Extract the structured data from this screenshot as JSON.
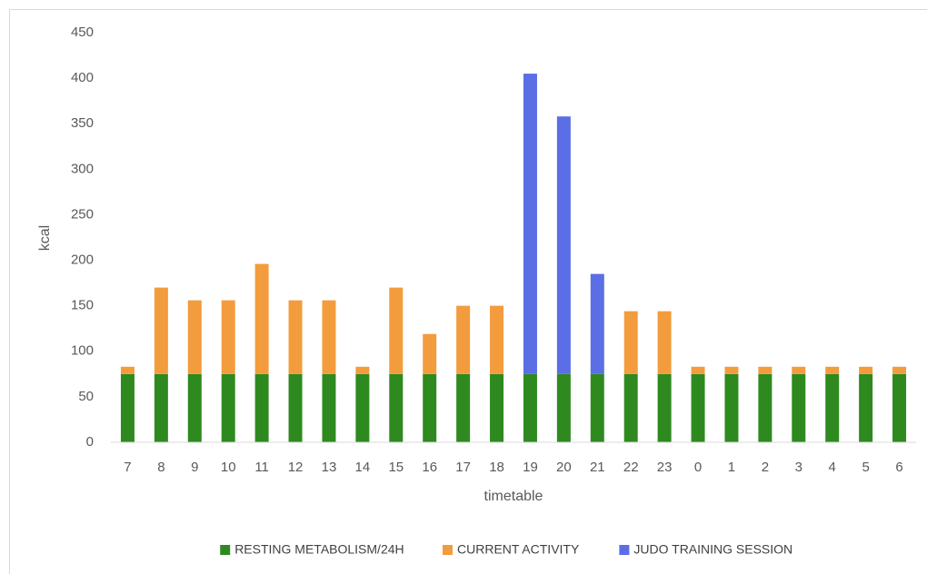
{
  "chart_data": {
    "type": "stacked_bar",
    "x_label": "timetable",
    "y_label": "kcal",
    "categories": [
      "7",
      "8",
      "9",
      "10",
      "11",
      "12",
      "13",
      "14",
      "15",
      "16",
      "17",
      "18",
      "19",
      "20",
      "21",
      "22",
      "23",
      "0",
      "1",
      "2",
      "3",
      "4",
      "5",
      "6"
    ],
    "series": [
      {
        "name": "RESTING METABOLISM/24H",
        "color": "#2e8a1f",
        "values": [
          75,
          75,
          75,
          75,
          75,
          75,
          75,
          75,
          75,
          75,
          75,
          75,
          75,
          75,
          75,
          75,
          75,
          75,
          75,
          75,
          75,
          75,
          75,
          75
        ]
      },
      {
        "name": "CURRENT ACTIVITY",
        "color": "#f39c3d",
        "values": [
          8,
          95,
          81,
          81,
          121,
          81,
          81,
          8,
          95,
          44,
          75,
          75,
          0,
          0,
          0,
          69,
          69,
          8,
          8,
          8,
          8,
          8,
          8,
          8
        ]
      },
      {
        "name": "JUDO TRAINING SESSION",
        "color": "#5b6ee6",
        "values": [
          0,
          0,
          0,
          0,
          0,
          0,
          0,
          0,
          0,
          0,
          0,
          0,
          330,
          283,
          110,
          0,
          0,
          0,
          0,
          0,
          0,
          0,
          0,
          0
        ]
      }
    ],
    "ylim": [
      0,
      450
    ],
    "yticks": [
      0,
      50,
      100,
      150,
      200,
      250,
      300,
      350,
      400,
      450
    ],
    "grid": false,
    "legend": "bottom"
  }
}
